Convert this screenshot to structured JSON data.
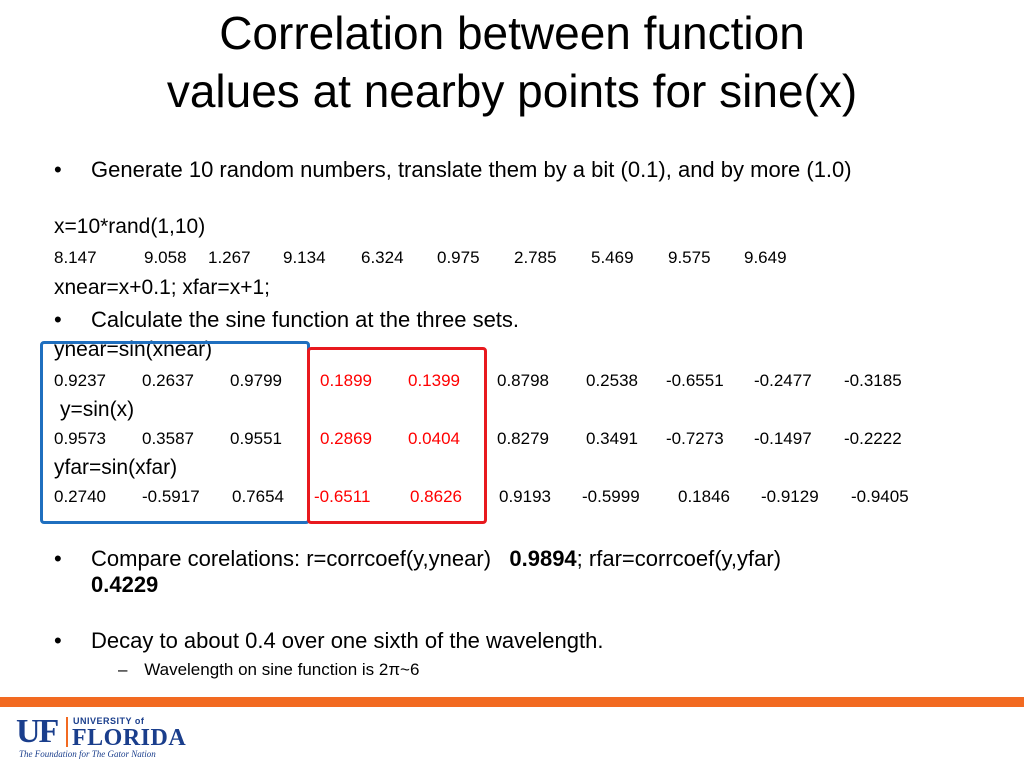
{
  "slide": {
    "title_line1": "Correlation between function",
    "title_line2": "values at nearby points for sine(x)",
    "bullet1": "Generate 10 random numbers, translate them by a bit (0.1), and by more (1.0)",
    "code_x": "x=10*rand(1,10)",
    "x_values": [
      "8.147",
      "9.058",
      "1.267",
      "9.134",
      "6.324",
      "0.975",
      "2.785",
      "5.469",
      "9.575",
      "9.649"
    ],
    "code_shift": "xnear=x+0.1; xfar=x+1;",
    "bullet2": "Calculate the sine function at the three sets.",
    "code_ynear": "ynear=sin(xnear)",
    "ynear_values": [
      "0.9237",
      "0.2637",
      "0.9799",
      "0.1899",
      "0.1399",
      "0.8798",
      "0.2538",
      "-0.6551",
      "-0.2477",
      "-0.3185"
    ],
    "code_y": "y=sin(x)",
    "y_values": [
      "0.9573",
      "0.3587",
      "0.9551",
      "0.2869",
      "0.0404",
      "0.8279",
      "0.3491",
      "-0.7273",
      "-0.1497",
      "-0.2222"
    ],
    "code_yfar": "yfar=sin(xfar)",
    "yfar_values": [
      "0.2740",
      "-0.5917",
      "0.7654",
      "-0.6511",
      "0.8626",
      "0.9193",
      "-0.5999",
      "0.1846",
      "-0.9129",
      "-0.9405"
    ],
    "bullet3_prefix": "Compare corelations: r=corrcoef(y,ynear)",
    "bullet3_r": "0.9894",
    "bullet3_mid": "; rfar=corrcoef(y,yfar)",
    "bullet3_rfar": "0.4229",
    "bullet4": "Decay to about 0.4 over one sixth of the wavelength.",
    "sub_bullet": "Wavelength on sine function is 2π~6",
    "bullet_symbol": "•",
    "dash_symbol": "–"
  },
  "footer": {
    "logo_letters": "UF",
    "logo_university": "UNIVERSITY of",
    "logo_florida": "FLORIDA",
    "logo_tagline": "The Foundation for The Gator Nation"
  },
  "colors": {
    "accent_orange": "#f26a21",
    "highlight_red": "#ff0000",
    "box_blue": "#1f6fbf",
    "box_red": "#e8191e",
    "uf_blue": "#1a3e8c"
  }
}
